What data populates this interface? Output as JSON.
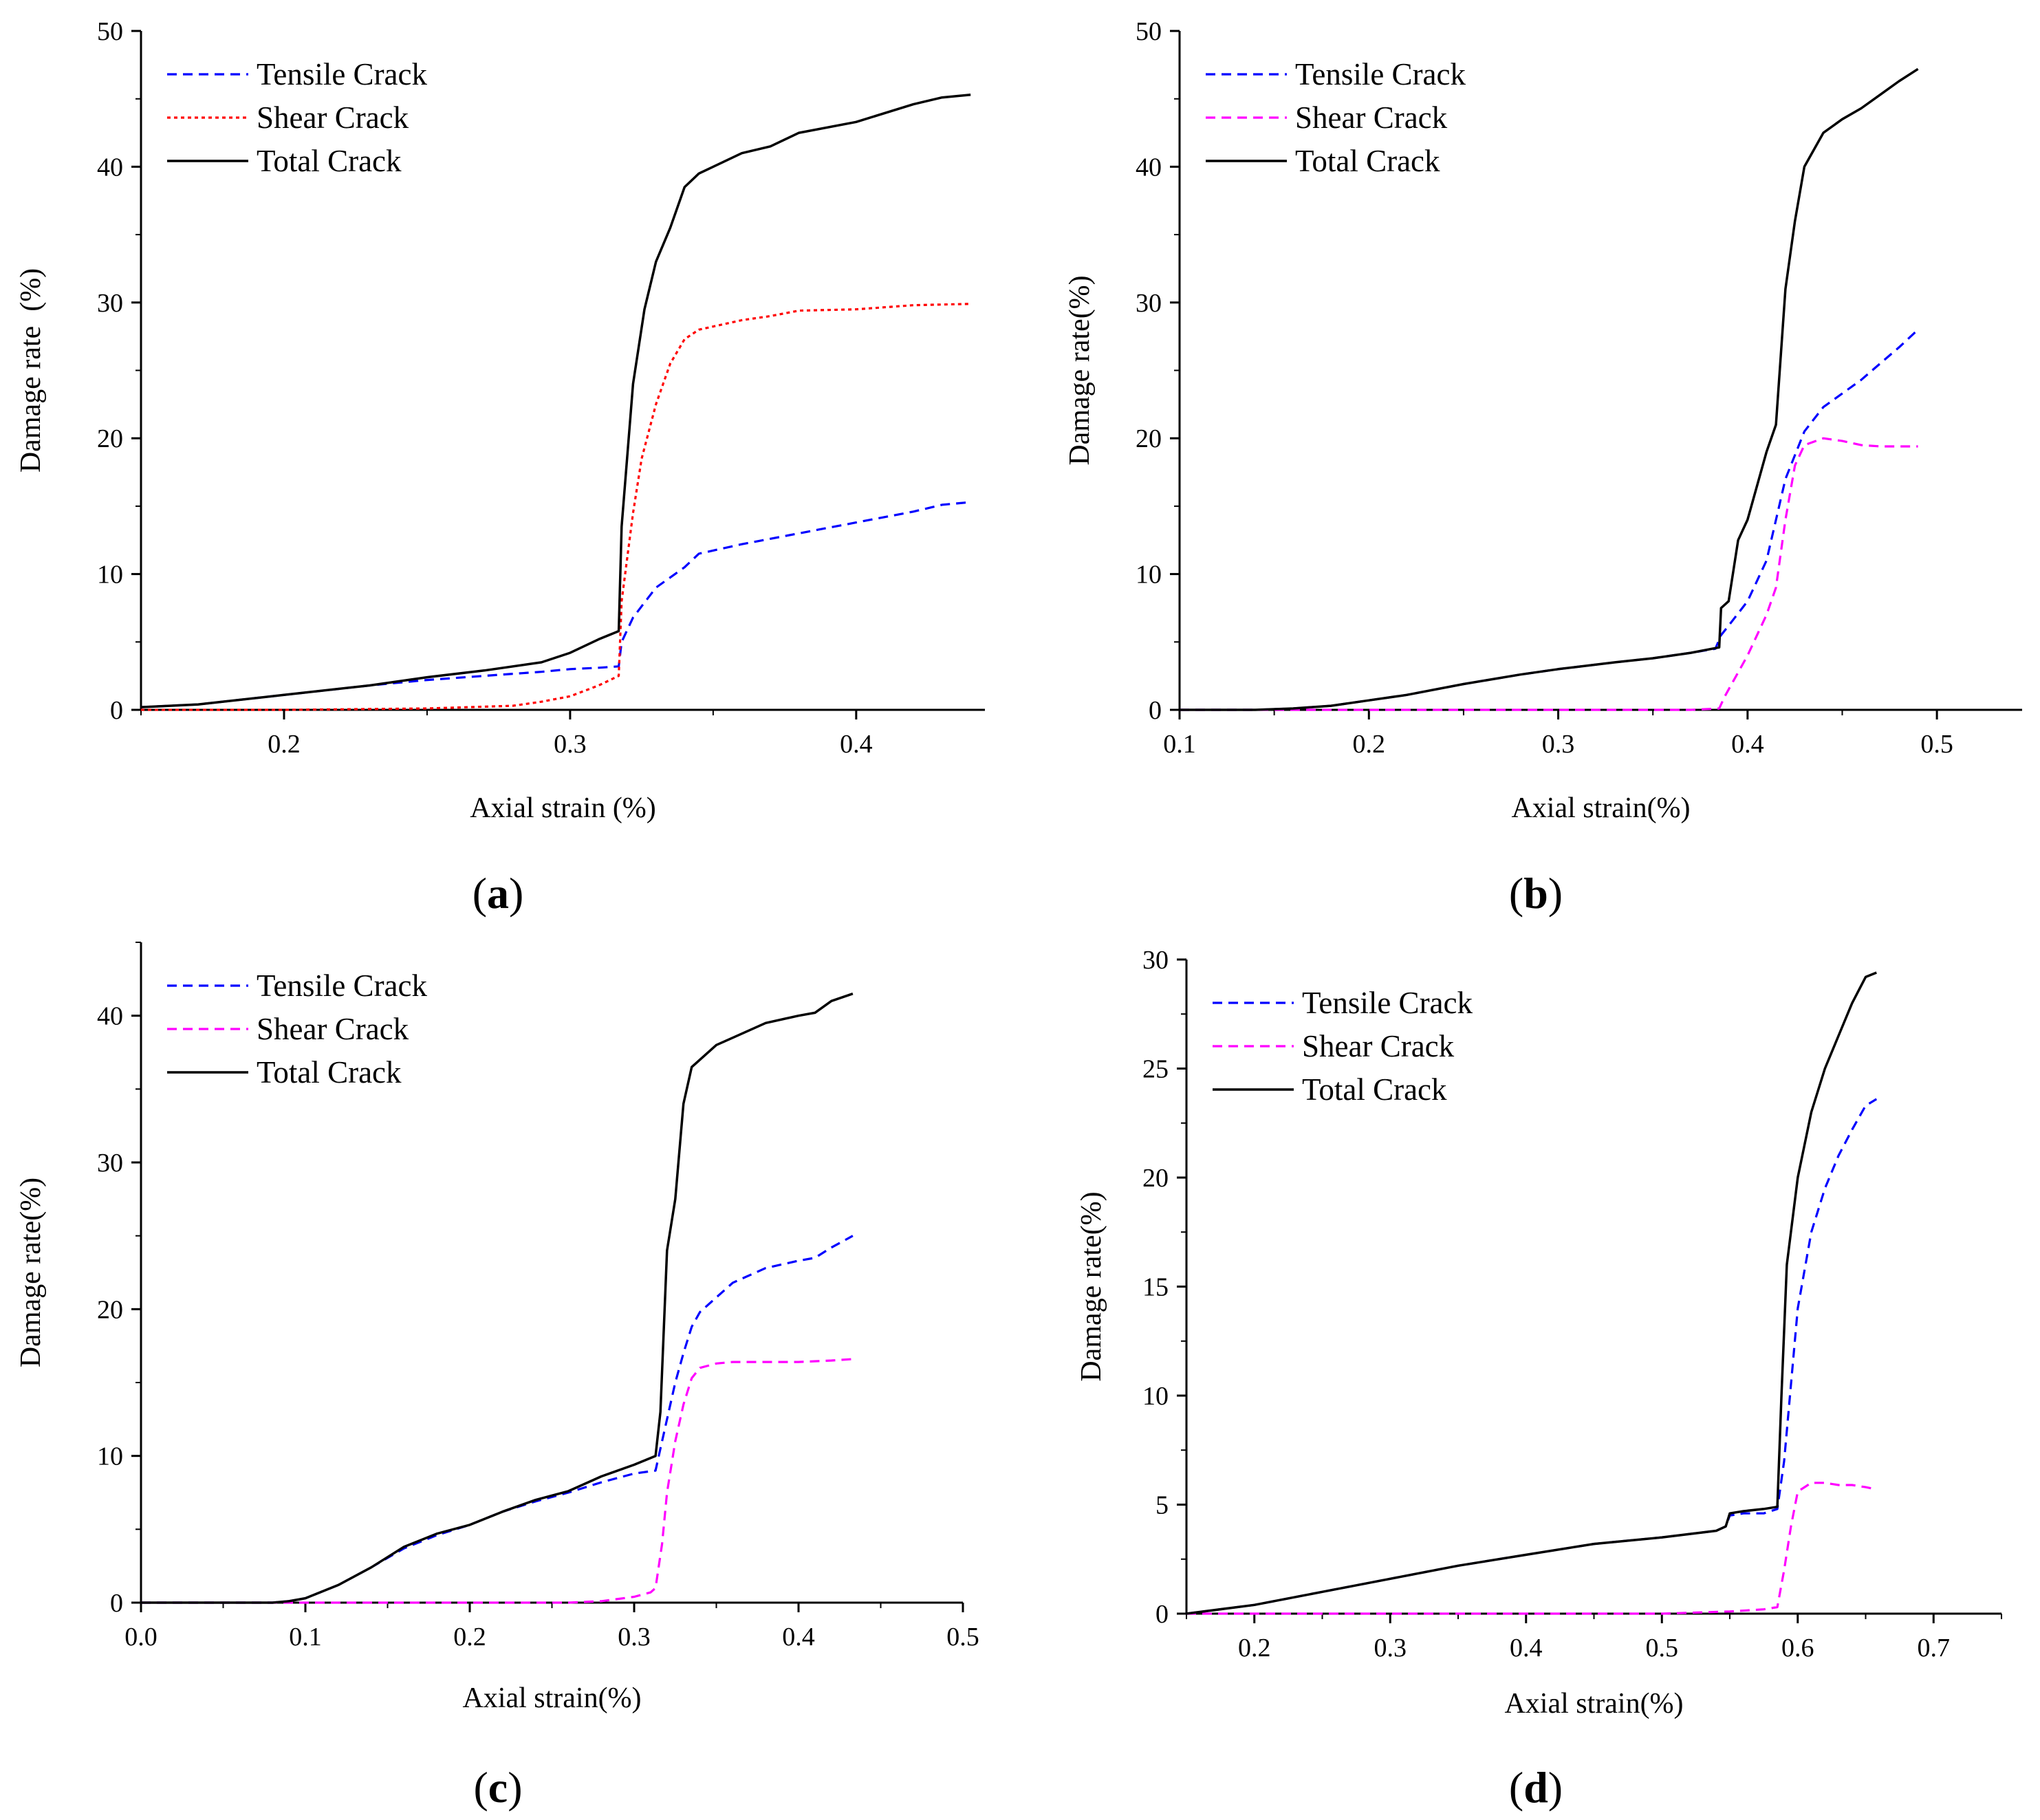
{
  "figure": {
    "panels": [
      "a",
      "b",
      "c",
      "d"
    ]
  },
  "chart_data": [
    {
      "panel": "a",
      "type": "line",
      "xlabel": "Axial strain (%)",
      "ylabel": "Damage rate  (%)",
      "xlim": [
        0.15,
        0.445
      ],
      "ylim": [
        0,
        50
      ],
      "xticks": [
        0.2,
        0.3,
        0.4
      ],
      "xtick_labels": [
        "0.2",
        "0.3",
        "0.4"
      ],
      "yticks": [
        0,
        10,
        20,
        30,
        40,
        50
      ],
      "ytick_labels": [
        "0",
        "10",
        "20",
        "30",
        "40",
        "50"
      ],
      "legend_position": "top-left",
      "grid": false,
      "series": [
        {
          "name": "Tensile Crack",
          "color": "#0000ff",
          "dash": "dashed",
          "x": [
            0.15,
            0.17,
            0.2,
            0.23,
            0.25,
            0.27,
            0.29,
            0.3,
            0.31,
            0.317,
            0.318,
            0.322,
            0.33,
            0.34,
            0.345,
            0.36,
            0.37,
            0.38,
            0.4,
            0.42,
            0.43,
            0.44
          ],
          "y": [
            0.2,
            0.4,
            1.1,
            1.8,
            2.2,
            2.5,
            2.8,
            3.0,
            3.1,
            3.2,
            5.0,
            6.8,
            9.0,
            10.5,
            11.5,
            12.2,
            12.6,
            13.0,
            13.8,
            14.6,
            15.1,
            15.3
          ]
        },
        {
          "name": "Shear Crack",
          "color": "#ff0000",
          "dash": "dotted",
          "x": [
            0.15,
            0.2,
            0.25,
            0.28,
            0.29,
            0.3,
            0.31,
            0.317,
            0.318,
            0.322,
            0.325,
            0.33,
            0.335,
            0.34,
            0.345,
            0.36,
            0.37,
            0.38,
            0.4,
            0.42,
            0.44
          ],
          "y": [
            0,
            0,
            0.1,
            0.3,
            0.6,
            1.0,
            1.8,
            2.5,
            8.0,
            14.5,
            18.5,
            22.5,
            25.5,
            27.3,
            28.0,
            28.7,
            29.0,
            29.4,
            29.5,
            29.8,
            29.9
          ]
        },
        {
          "name": "Total Crack",
          "color": "#000000",
          "dash": "solid",
          "x": [
            0.15,
            0.17,
            0.2,
            0.23,
            0.25,
            0.27,
            0.29,
            0.3,
            0.31,
            0.317,
            0.318,
            0.322,
            0.326,
            0.33,
            0.335,
            0.34,
            0.345,
            0.35,
            0.36,
            0.37,
            0.38,
            0.4,
            0.42,
            0.43,
            0.44
          ],
          "y": [
            0.2,
            0.4,
            1.1,
            1.8,
            2.4,
            2.9,
            3.5,
            4.2,
            5.2,
            5.8,
            13.5,
            24.0,
            29.5,
            33.0,
            35.5,
            38.5,
            39.5,
            40.0,
            41.0,
            41.5,
            42.5,
            43.3,
            44.6,
            45.1,
            45.3
          ]
        }
      ]
    },
    {
      "panel": "b",
      "type": "line",
      "xlabel": "Axial strain(%)",
      "ylabel": "Damage rate(%)",
      "xlim": [
        0.1,
        0.545
      ],
      "ylim": [
        0,
        50
      ],
      "xticks": [
        0.1,
        0.2,
        0.3,
        0.4,
        0.5
      ],
      "xtick_labels": [
        "0.1",
        "0.2",
        "0.3",
        "0.4",
        "0.5"
      ],
      "yticks": [
        0,
        10,
        20,
        30,
        40,
        50
      ],
      "ytick_labels": [
        "0",
        "10",
        "20",
        "30",
        "40",
        "50"
      ],
      "legend_position": "top-left",
      "grid": false,
      "series": [
        {
          "name": "Tensile Crack",
          "color": "#0000ff",
          "dash": "dashed",
          "x": [
            0.1,
            0.14,
            0.16,
            0.18,
            0.2,
            0.22,
            0.25,
            0.28,
            0.3,
            0.33,
            0.35,
            0.37,
            0.383,
            0.386,
            0.39,
            0.4,
            0.41,
            0.42,
            0.43,
            0.44,
            0.45,
            0.46,
            0.47,
            0.48,
            0.49
          ],
          "y": [
            0,
            0,
            0.1,
            0.3,
            0.7,
            1.1,
            1.9,
            2.6,
            3.0,
            3.5,
            3.8,
            4.2,
            4.5,
            5.5,
            6.2,
            8.0,
            11.0,
            17.0,
            20.5,
            22.3,
            23.3,
            24.3,
            25.5,
            26.7,
            28.0
          ]
        },
        {
          "name": "Shear Crack",
          "color": "#ff00ff",
          "dash": "dashed",
          "x": [
            0.1,
            0.2,
            0.3,
            0.37,
            0.385,
            0.388,
            0.392,
            0.4,
            0.41,
            0.415,
            0.42,
            0.425,
            0.43,
            0.44,
            0.45,
            0.46,
            0.47,
            0.48,
            0.49
          ],
          "y": [
            0,
            0,
            0,
            0,
            0.1,
            1.0,
            2.0,
            4.0,
            7.0,
            9.0,
            14.0,
            18.0,
            19.5,
            20.0,
            19.8,
            19.5,
            19.4,
            19.4,
            19.4
          ]
        },
        {
          "name": "Total Crack",
          "color": "#000000",
          "dash": "solid",
          "x": [
            0.1,
            0.14,
            0.16,
            0.18,
            0.2,
            0.22,
            0.25,
            0.28,
            0.3,
            0.33,
            0.35,
            0.37,
            0.385,
            0.386,
            0.39,
            0.395,
            0.4,
            0.41,
            0.415,
            0.42,
            0.425,
            0.43,
            0.44,
            0.45,
            0.46,
            0.47,
            0.48,
            0.49
          ],
          "y": [
            0,
            0,
            0.1,
            0.3,
            0.7,
            1.1,
            1.9,
            2.6,
            3.0,
            3.5,
            3.8,
            4.2,
            4.6,
            7.5,
            8.0,
            12.5,
            14.0,
            19.0,
            21.0,
            31.0,
            36.0,
            40.0,
            42.5,
            43.5,
            44.3,
            45.3,
            46.3,
            47.2
          ]
        }
      ]
    },
    {
      "panel": "c",
      "type": "line",
      "xlabel": "Axial strain(%)",
      "ylabel": "Damage rate(%)",
      "xlim": [
        0.0,
        0.5
      ],
      "ylim": [
        0,
        45
      ],
      "xticks": [
        0.0,
        0.1,
        0.2,
        0.3,
        0.4,
        0.5
      ],
      "xtick_labels": [
        "0.0",
        "0.1",
        "0.2",
        "0.3",
        "0.4",
        "0.5"
      ],
      "yticks": [
        0,
        10,
        20,
        30,
        40
      ],
      "ytick_labels": [
        "0",
        "10",
        "20",
        "30",
        "40"
      ],
      "legend_position": "top-left",
      "grid": false,
      "series": [
        {
          "name": "Tensile Crack",
          "color": "#0000ff",
          "dash": "dashed",
          "x": [
            0.0,
            0.08,
            0.09,
            0.1,
            0.12,
            0.14,
            0.16,
            0.18,
            0.2,
            0.22,
            0.24,
            0.26,
            0.28,
            0.3,
            0.313,
            0.316,
            0.32,
            0.325,
            0.33,
            0.335,
            0.34,
            0.35,
            0.36,
            0.38,
            0.4,
            0.41,
            0.42,
            0.433
          ],
          "y": [
            0,
            0,
            0.1,
            0.3,
            1.2,
            2.4,
            3.7,
            4.6,
            5.3,
            6.2,
            6.9,
            7.5,
            8.2,
            8.8,
            9.0,
            10.5,
            12.5,
            15.0,
            17.0,
            18.8,
            19.8,
            20.8,
            21.8,
            22.8,
            23.3,
            23.5,
            24.2,
            25.0
          ]
        },
        {
          "name": "Shear Crack",
          "color": "#ff00ff",
          "dash": "dashed",
          "x": [
            0.0,
            0.1,
            0.2,
            0.26,
            0.28,
            0.3,
            0.31,
            0.313,
            0.317,
            0.32,
            0.325,
            0.33,
            0.335,
            0.34,
            0.35,
            0.36,
            0.38,
            0.4,
            0.42,
            0.433
          ],
          "y": [
            0,
            0,
            0,
            0,
            0.1,
            0.4,
            0.7,
            1.0,
            4.0,
            7.5,
            11.0,
            13.5,
            15.3,
            16.0,
            16.3,
            16.4,
            16.4,
            16.4,
            16.5,
            16.6
          ]
        },
        {
          "name": "Total Crack",
          "color": "#000000",
          "dash": "solid",
          "x": [
            0.0,
            0.08,
            0.09,
            0.1,
            0.12,
            0.14,
            0.16,
            0.18,
            0.2,
            0.22,
            0.24,
            0.26,
            0.28,
            0.3,
            0.313,
            0.316,
            0.32,
            0.325,
            0.33,
            0.335,
            0.34,
            0.35,
            0.36,
            0.38,
            0.4,
            0.41,
            0.42,
            0.433
          ],
          "y": [
            0,
            0,
            0.1,
            0.3,
            1.2,
            2.4,
            3.8,
            4.7,
            5.3,
            6.2,
            7.0,
            7.6,
            8.6,
            9.4,
            10.0,
            13.0,
            24.0,
            27.5,
            34.0,
            36.5,
            37.0,
            38.0,
            38.5,
            39.5,
            40.0,
            40.2,
            41.0,
            41.5
          ]
        }
      ]
    },
    {
      "panel": "d",
      "type": "line",
      "xlabel": "Axial strain(%)",
      "ylabel": "Damage rate(%)",
      "xlim": [
        0.15,
        0.75
      ],
      "ylim": [
        0,
        30
      ],
      "xticks": [
        0.2,
        0.3,
        0.4,
        0.5,
        0.6,
        0.7
      ],
      "xtick_labels": [
        "0.2",
        "0.3",
        "0.4",
        "0.5",
        "0.6",
        "0.7"
      ],
      "yticks": [
        0,
        5,
        10,
        15,
        20,
        25,
        30
      ],
      "ytick_labels": [
        "0",
        "5",
        "10",
        "15",
        "20",
        "25",
        "30"
      ],
      "legend_position": "top-left",
      "grid": false,
      "series": [
        {
          "name": "Tensile Crack",
          "color": "#0000ff",
          "dash": "dashed",
          "x": [
            0.15,
            0.2,
            0.25,
            0.3,
            0.35,
            0.4,
            0.45,
            0.5,
            0.54,
            0.547,
            0.55,
            0.56,
            0.575,
            0.585,
            0.59,
            0.6,
            0.61,
            0.62,
            0.63,
            0.64,
            0.65,
            0.658
          ],
          "y": [
            0,
            0.4,
            1.0,
            1.6,
            2.2,
            2.7,
            3.2,
            3.5,
            3.8,
            4.0,
            4.5,
            4.6,
            4.6,
            4.8,
            7.0,
            14.0,
            17.5,
            19.5,
            21.0,
            22.2,
            23.3,
            23.6
          ]
        },
        {
          "name": "Shear Crack",
          "color": "#ff00ff",
          "dash": "dashed",
          "x": [
            0.15,
            0.3,
            0.4,
            0.5,
            0.55,
            0.575,
            0.585,
            0.59,
            0.595,
            0.6,
            0.61,
            0.62,
            0.63,
            0.64,
            0.65,
            0.658
          ],
          "y": [
            0,
            0,
            0,
            0,
            0.1,
            0.2,
            0.3,
            2.0,
            4.0,
            5.6,
            6.0,
            6.0,
            5.9,
            5.9,
            5.8,
            5.7
          ]
        },
        {
          "name": "Total Crack",
          "color": "#000000",
          "dash": "solid",
          "x": [
            0.15,
            0.2,
            0.25,
            0.3,
            0.35,
            0.4,
            0.45,
            0.5,
            0.54,
            0.547,
            0.55,
            0.56,
            0.575,
            0.585,
            0.588,
            0.592,
            0.6,
            0.61,
            0.62,
            0.63,
            0.64,
            0.65,
            0.658
          ],
          "y": [
            0,
            0.4,
            1.0,
            1.6,
            2.2,
            2.7,
            3.2,
            3.5,
            3.8,
            4.0,
            4.6,
            4.7,
            4.8,
            4.9,
            10.0,
            16.0,
            20.0,
            23.0,
            25.0,
            26.5,
            28.0,
            29.2,
            29.4
          ]
        }
      ]
    }
  ]
}
